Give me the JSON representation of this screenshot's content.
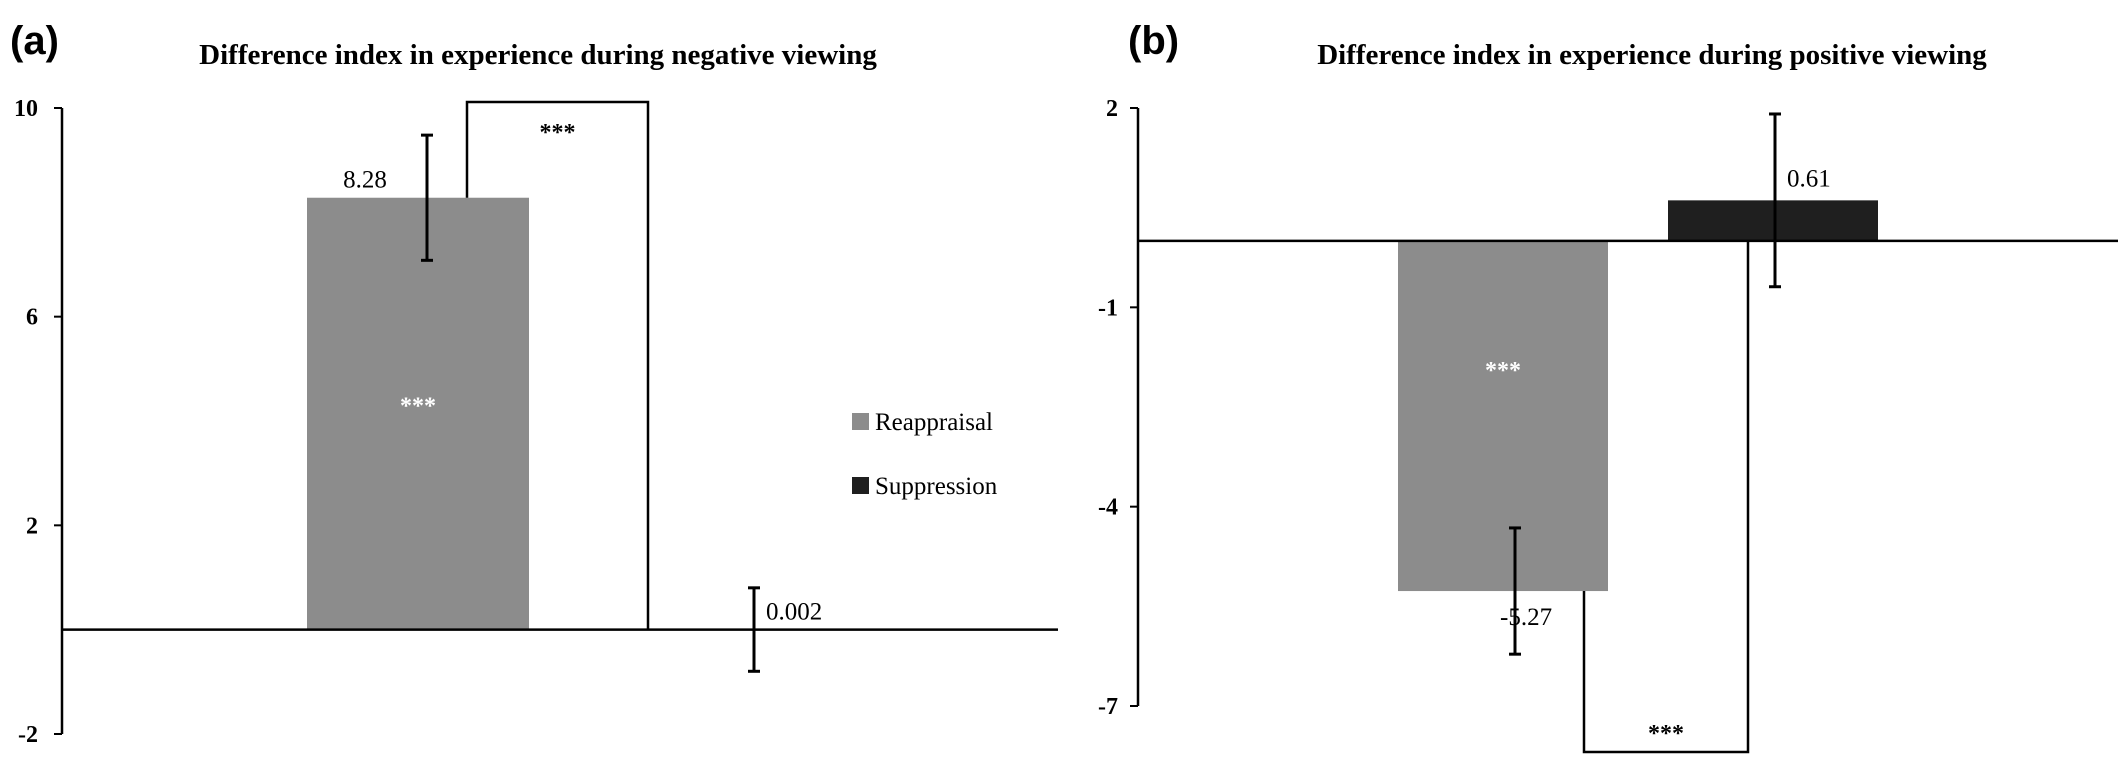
{
  "colors": {
    "reappraisal": "#8c8c8c",
    "suppression": "#1f1f1f",
    "axis": "#000000",
    "background": "#ffffff"
  },
  "legend": {
    "items": [
      {
        "label": "Reappraisal",
        "color": "#8c8c8c"
      },
      {
        "label": "Suppression",
        "color": "#1f1f1f"
      }
    ],
    "placement": "right of panel (a)"
  },
  "chart_data": [
    {
      "panel": "(a)",
      "type": "bar",
      "title": "Difference index in experience during negative viewing",
      "xlabel": "",
      "ylabel": "",
      "ylim": [
        -2,
        10
      ],
      "yticks": [
        "10",
        "6",
        "2",
        "-2"
      ],
      "grid": false,
      "categories": [
        "Reappraisal",
        "Suppression"
      ],
      "series": [
        {
          "name": "Reappraisal",
          "value": 8.28,
          "error": 1.2,
          "label": "8.28",
          "significance": "***"
        },
        {
          "name": "Suppression",
          "value": 0.002,
          "error": 0.8,
          "label": "0.002",
          "significance": ""
        }
      ],
      "comparison": {
        "label": "***"
      }
    },
    {
      "panel": "(b)",
      "type": "bar",
      "title": "Difference index in experience during positive viewing",
      "xlabel": "",
      "ylabel": "",
      "ylim": [
        -7,
        2
      ],
      "yticks": [
        "2",
        "-1",
        "-4",
        "-7"
      ],
      "grid": false,
      "categories": [
        "Reappraisal",
        "Suppression"
      ],
      "series": [
        {
          "name": "Reappraisal",
          "value": -5.27,
          "error": 0.95,
          "label": "-5.27",
          "significance": "***"
        },
        {
          "name": "Suppression",
          "value": 0.61,
          "error": 1.3,
          "label": "0.61",
          "significance": ""
        }
      ],
      "comparison": {
        "label": "***"
      }
    }
  ]
}
